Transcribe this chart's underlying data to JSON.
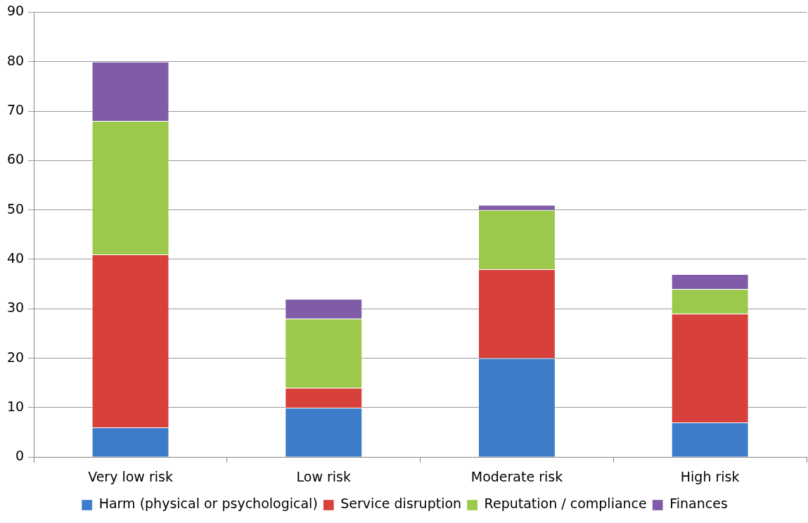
{
  "chart_data": {
    "type": "bar",
    "stacked": true,
    "categories": [
      "Very low risk",
      "Low risk",
      "Moderate risk",
      "High risk"
    ],
    "series": [
      {
        "name": "Harm (physical or psychological)",
        "color": "#3c7cc8",
        "values": [
          6,
          10,
          20,
          7
        ]
      },
      {
        "name": "Service disruption",
        "color": "#d7403b",
        "values": [
          35,
          4,
          18,
          22
        ]
      },
      {
        "name": "Reputation / compliance",
        "color": "#9cc84b",
        "values": [
          27,
          14,
          12,
          5
        ]
      },
      {
        "name": "Finances",
        "color": "#7f5ba8",
        "values": [
          12,
          4,
          1,
          3
        ]
      }
    ],
    "ylim": [
      0,
      90
    ],
    "yticks": [
      0,
      10,
      20,
      30,
      40,
      50,
      60,
      70,
      80,
      90
    ],
    "grid": "y",
    "legend": "bottom"
  }
}
